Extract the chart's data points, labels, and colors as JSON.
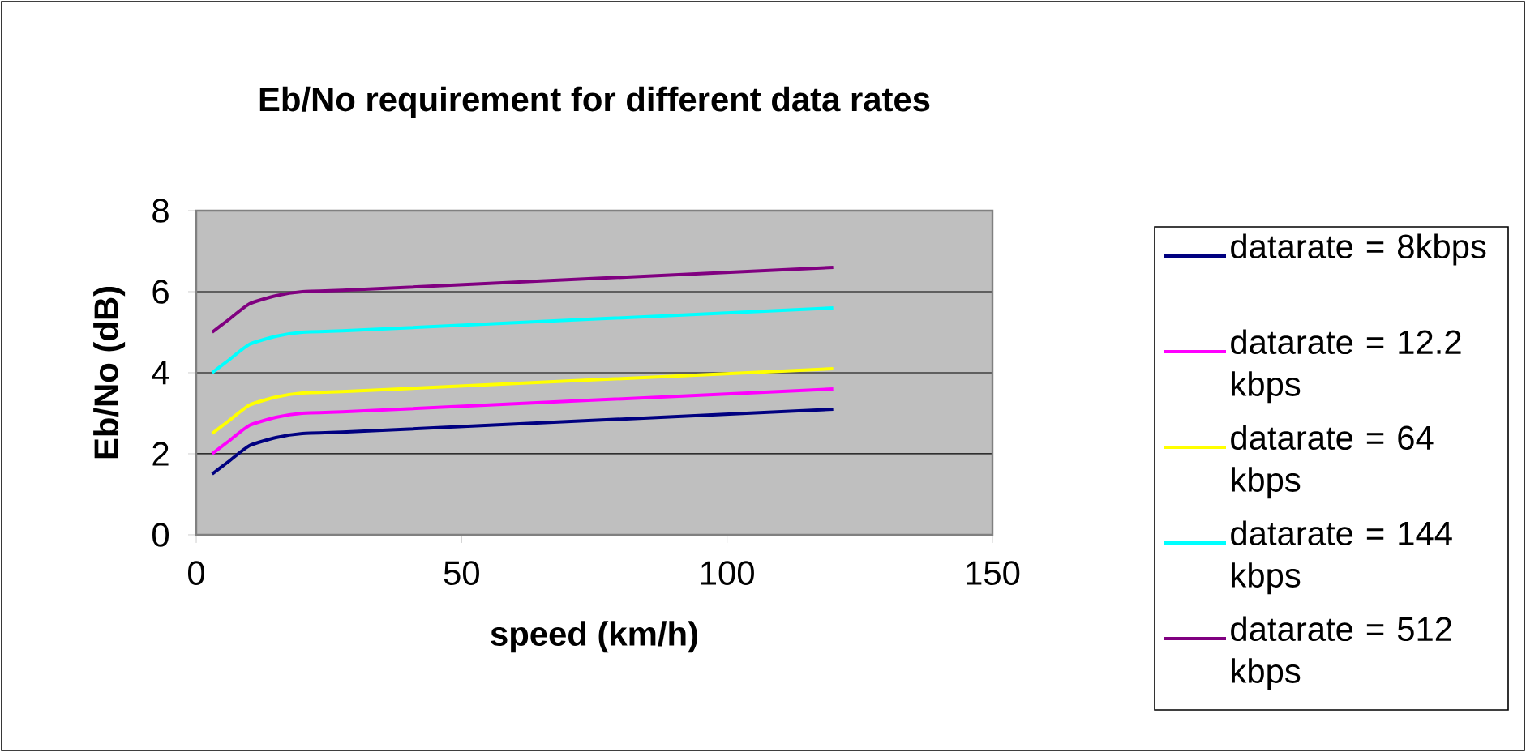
{
  "chart_data": {
    "type": "line",
    "title": "Eb/No requirement for different data rates",
    "xlabel": "speed (km/h)",
    "ylabel": "Eb/No (dB)",
    "x": [
      3,
      6,
      10,
      15,
      20,
      30,
      120
    ],
    "series": [
      {
        "name": "datarate = 8kbps",
        "color": "#000080",
        "values": [
          1.5,
          1.8,
          2.2,
          2.4,
          2.5,
          2.55,
          3.1
        ]
      },
      {
        "name": "datarate = 12.2 kbps",
        "color": "#ff00ff",
        "values": [
          2.0,
          2.3,
          2.7,
          2.9,
          3.0,
          3.05,
          3.6
        ]
      },
      {
        "name": "datarate = 64 kbps",
        "color": "#ffff00",
        "values": [
          2.5,
          2.8,
          3.2,
          3.4,
          3.5,
          3.55,
          4.1
        ]
      },
      {
        "name": "datarate = 144 kbps",
        "color": "#00ffff",
        "values": [
          4.0,
          4.3,
          4.7,
          4.9,
          5.0,
          5.05,
          5.6
        ]
      },
      {
        "name": "datarate = 512 kbps",
        "color": "#800080",
        "values": [
          5.0,
          5.3,
          5.7,
          5.9,
          6.0,
          6.05,
          6.6
        ]
      }
    ],
    "xlim": [
      0,
      150
    ],
    "ylim": [
      0,
      8
    ],
    "xticks": [
      0,
      50,
      100,
      150
    ],
    "yticks": [
      0,
      2,
      4,
      6,
      8
    ],
    "grid": "y",
    "legend": "right",
    "marker": "none",
    "line_style": "solid"
  }
}
